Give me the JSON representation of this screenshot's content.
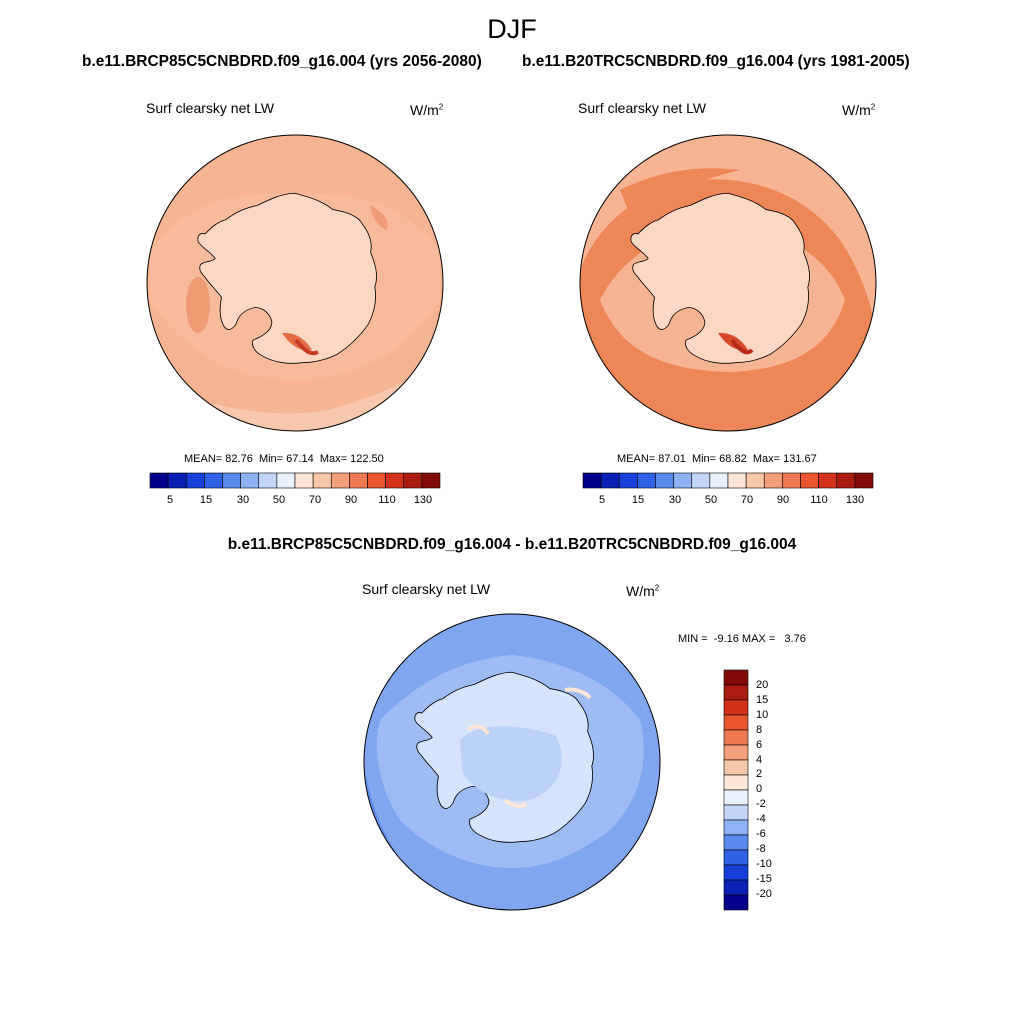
{
  "title": "DJF",
  "panels": [
    {
      "case": "b.e11.BRCP85C5CNBDRD.f09_g16.004 (yrs 2056-2080)",
      "variable": "Surf clearsky net LW",
      "units_base": "W/m",
      "units_exp": "2",
      "stats": {
        "mean": "82.76",
        "min": "67.14",
        "max": "122.50"
      }
    },
    {
      "case": "b.e11.B20TRC5CNBDRD.f09_g16.004 (yrs 1981-2005)",
      "variable": "Surf clearsky net LW",
      "units_base": "W/m",
      "units_exp": "2",
      "stats": {
        "mean": "87.01",
        "min": "68.82",
        "max": "131.67"
      }
    }
  ],
  "stats_labels": {
    "mean": "MEAN=",
    "min": "Min=",
    "max": "Max="
  },
  "colorbar_top": {
    "ticks": [
      "5",
      "15",
      "30",
      "50",
      "70",
      "90",
      "110",
      "130"
    ],
    "colors": [
      "#00008c",
      "#0a1fb4",
      "#1640d8",
      "#2f62e6",
      "#5a8bef",
      "#8fb2f5",
      "#c2d6fa",
      "#e9f1fd",
      "#fde6d6",
      "#f8c6a8",
      "#f3a07a",
      "#ef7a52",
      "#e9552e",
      "#d2321a",
      "#ab1d10",
      "#820a08"
    ]
  },
  "diff": {
    "title": "b.e11.BRCP85C5CNBDRD.f09_g16.004 - b.e11.B20TRC5CNBDRD.f09_g16.004",
    "variable": "Surf clearsky net LW",
    "units_base": "W/m",
    "units_exp": "2",
    "min_label": "MIN =",
    "min": "-9.16",
    "max_label": "MAX =",
    "max": "3.76",
    "colorbar": {
      "ticks": [
        "20",
        "15",
        "10",
        "8",
        "6",
        "4",
        "2",
        "0",
        "-2",
        "-4",
        "-6",
        "-8",
        "-10",
        "-15",
        "-20"
      ],
      "colors": [
        "#820a08",
        "#ab1d10",
        "#d2321a",
        "#e9552e",
        "#ef7a52",
        "#f3a07a",
        "#f8c6a8",
        "#fde6d6",
        "#e9f1fd",
        "#c2d6fa",
        "#8fb2f5",
        "#5a8bef",
        "#2f62e6",
        "#1640d8",
        "#0a1fb4",
        "#00008c"
      ]
    }
  }
}
